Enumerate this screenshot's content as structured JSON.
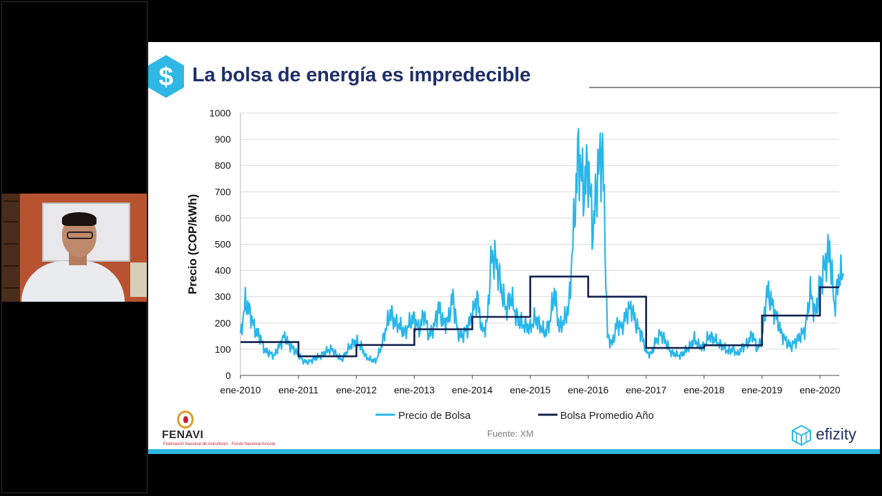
{
  "slide": {
    "title": "La bolsa de energía es impredecible",
    "title_icon": "dollar-hexagon-icon",
    "source": "Fuente: XM",
    "left_logo": {
      "name": "FENAVI",
      "subtitle": "Federación Nacional de Avicultores · Fondo Nacional Avícola"
    },
    "right_logo": {
      "name": "efizity",
      "icon": "stacked-cubes-icon"
    },
    "colors": {
      "title": "#1f3068",
      "accent": "#2fb7e5",
      "price_line": "#29b6ea",
      "average_line": "#0f1f4d"
    }
  },
  "chart_data": {
    "type": "line",
    "title": "",
    "xlabel": "",
    "ylabel": "Precio (COP/kWh)",
    "ylim": [
      0,
      1000
    ],
    "yticks": [
      "0",
      "100",
      "200",
      "300",
      "400",
      "500",
      "600",
      "700",
      "800",
      "900",
      "1000"
    ],
    "xticks": [
      "ene-2010",
      "ene-2011",
      "ene-2012",
      "ene-2013",
      "ene-2014",
      "ene-2015",
      "ene-2016",
      "ene-2017",
      "ene-2018",
      "ene-2019",
      "ene-2020"
    ],
    "xlim": [
      "2010-01",
      "2020-05"
    ],
    "grid": true,
    "legend_position": "bottom",
    "series": [
      {
        "name": "Precio de Bolsa",
        "x": [
          "2010-01",
          "2010-02",
          "2010-03",
          "2010-04",
          "2010-05",
          "2010-06",
          "2010-07",
          "2010-08",
          "2010-09",
          "2010-10",
          "2010-11",
          "2010-12",
          "2011-01",
          "2011-02",
          "2011-03",
          "2011-04",
          "2011-05",
          "2011-06",
          "2011-07",
          "2011-08",
          "2011-09",
          "2011-10",
          "2011-11",
          "2011-12",
          "2012-01",
          "2012-02",
          "2012-03",
          "2012-04",
          "2012-05",
          "2012-06",
          "2012-07",
          "2012-08",
          "2012-09",
          "2012-10",
          "2012-11",
          "2012-12",
          "2013-01",
          "2013-02",
          "2013-03",
          "2013-04",
          "2013-05",
          "2013-06",
          "2013-07",
          "2013-08",
          "2013-09",
          "2013-10",
          "2013-11",
          "2013-12",
          "2014-01",
          "2014-02",
          "2014-03",
          "2014-04",
          "2014-05",
          "2014-06",
          "2014-07",
          "2014-08",
          "2014-09",
          "2014-10",
          "2014-11",
          "2014-12",
          "2015-01",
          "2015-02",
          "2015-03",
          "2015-04",
          "2015-05",
          "2015-06",
          "2015-07",
          "2015-08",
          "2015-09",
          "2015-10",
          "2015-11",
          "2015-12",
          "2016-01",
          "2016-02",
          "2016-03",
          "2016-04",
          "2016-05",
          "2016-06",
          "2016-07",
          "2016-08",
          "2016-09",
          "2016-10",
          "2016-11",
          "2016-12",
          "2017-01",
          "2017-02",
          "2017-03",
          "2017-04",
          "2017-05",
          "2017-06",
          "2017-07",
          "2017-08",
          "2017-09",
          "2017-10",
          "2017-11",
          "2017-12",
          "2018-01",
          "2018-02",
          "2018-03",
          "2018-04",
          "2018-05",
          "2018-06",
          "2018-07",
          "2018-08",
          "2018-09",
          "2018-10",
          "2018-11",
          "2018-12",
          "2019-01",
          "2019-02",
          "2019-03",
          "2019-04",
          "2019-05",
          "2019-06",
          "2019-07",
          "2019-08",
          "2019-09",
          "2019-10",
          "2019-11",
          "2019-12",
          "2020-01",
          "2020-02",
          "2020-03",
          "2020-04",
          "2020-05"
        ],
        "values": [
          150,
          280,
          240,
          170,
          150,
          95,
          85,
          75,
          110,
          150,
          120,
          100,
          80,
          55,
          50,
          60,
          70,
          80,
          95,
          100,
          75,
          60,
          90,
          120,
          130,
          110,
          70,
          60,
          55,
          100,
          170,
          240,
          200,
          190,
          160,
          200,
          220,
          170,
          240,
          150,
          180,
          260,
          200,
          210,
          300,
          160,
          150,
          180,
          230,
          300,
          170,
          190,
          460,
          430,
          330,
          250,
          300,
          230,
          200,
          190,
          180,
          220,
          190,
          160,
          200,
          320,
          180,
          210,
          260,
          560,
          860,
          700,
          800,
          540,
          780,
          860,
          150,
          120,
          200,
          180,
          240,
          260,
          190,
          160,
          90,
          80,
          130,
          160,
          130,
          90,
          80,
          75,
          90,
          110,
          140,
          110,
          110,
          150,
          140,
          120,
          110,
          90,
          100,
          80,
          110,
          120,
          160,
          100,
          140,
          320,
          280,
          220,
          160,
          130,
          110,
          130,
          150,
          180,
          320,
          230,
          340,
          420,
          480,
          260,
          380
        ]
      },
      {
        "name": "Bolsa Promedio Año",
        "x": [
          "2010",
          "2011",
          "2012",
          "2013",
          "2014",
          "2015",
          "2016",
          "2017",
          "2018",
          "2019",
          "2020"
        ],
        "values": [
          127,
          73,
          116,
          176,
          223,
          377,
          300,
          105,
          115,
          228,
          336
        ]
      }
    ]
  },
  "webcam": {
    "label": "presenter-video"
  }
}
